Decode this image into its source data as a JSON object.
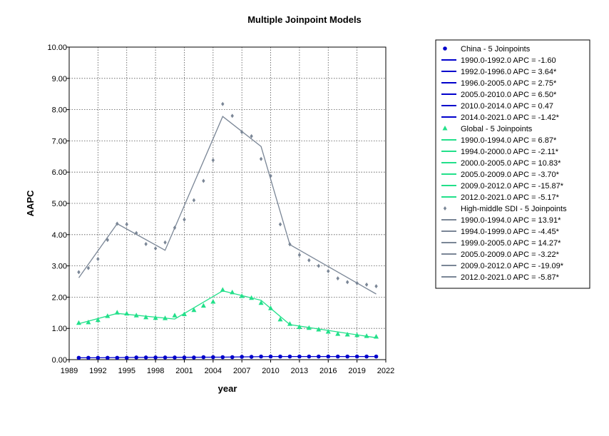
{
  "chart_data": {
    "type": "line",
    "title": "Multiple Joinpoint Models",
    "xlabel": "year",
    "ylabel": "AAPC",
    "xlim": [
      1989,
      2022
    ],
    "ylim": [
      0,
      10
    ],
    "xticks": [
      1989,
      1992,
      1995,
      1998,
      2001,
      2004,
      2007,
      2010,
      2013,
      2016,
      2019,
      2022
    ],
    "yticks": [
      0,
      1,
      2,
      3,
      4,
      5,
      6,
      7,
      8,
      9,
      10
    ],
    "ytick_labels": [
      "0.00",
      "1.00",
      "2.00",
      "3.00",
      "4.00",
      "5.00",
      "6.00",
      "7.00",
      "8.00",
      "9.00",
      "10.00"
    ],
    "grid": true,
    "legend_position": "right",
    "series": [
      {
        "name": "China - 5 Joinpoints",
        "color": "#0000cc",
        "marker": "circle",
        "x": [
          1990,
          1991,
          1992,
          1993,
          1994,
          1995,
          1996,
          1997,
          1998,
          1999,
          2000,
          2001,
          2002,
          2003,
          2004,
          2005,
          2006,
          2007,
          2008,
          2009,
          2010,
          2011,
          2012,
          2013,
          2014,
          2015,
          2016,
          2017,
          2018,
          2019,
          2020,
          2021
        ],
        "y": [
          0.06,
          0.06,
          0.06,
          0.06,
          0.06,
          0.06,
          0.07,
          0.07,
          0.07,
          0.07,
          0.07,
          0.07,
          0.07,
          0.08,
          0.08,
          0.08,
          0.08,
          0.09,
          0.09,
          0.1,
          0.1,
          0.1,
          0.1,
          0.1,
          0.1,
          0.1,
          0.1,
          0.1,
          0.1,
          0.1,
          0.1,
          0.1
        ],
        "fit": [
          [
            1990,
            0.06
          ],
          [
            1992,
            0.06
          ],
          [
            1996,
            0.07
          ],
          [
            2005,
            0.08
          ],
          [
            2010,
            0.1
          ],
          [
            2014,
            0.1
          ],
          [
            2021,
            0.1
          ]
        ],
        "segments": [
          "1990.0-1992.0 APC  =  -1.60",
          "1992.0-1996.0 APC  =  3.64*",
          "1996.0-2005.0 APC  =  2.75*",
          "2005.0-2010.0 APC  =  6.50*",
          "2010.0-2014.0 APC  =  0.47",
          "2014.0-2021.0 APC  =  -1.42*"
        ]
      },
      {
        "name": "Global - 5 Joinpoints",
        "color": "#22e08a",
        "marker": "triangle",
        "x": [
          1990,
          1991,
          1992,
          1993,
          1994,
          1995,
          1996,
          1997,
          1998,
          1999,
          2000,
          2001,
          2002,
          2003,
          2004,
          2005,
          2006,
          2007,
          2008,
          2009,
          2010,
          2011,
          2012,
          2013,
          2014,
          2015,
          2016,
          2017,
          2018,
          2019,
          2020,
          2021
        ],
        "y": [
          1.17,
          1.19,
          1.26,
          1.39,
          1.5,
          1.47,
          1.41,
          1.35,
          1.33,
          1.32,
          1.41,
          1.45,
          1.58,
          1.72,
          1.85,
          2.23,
          2.15,
          2.03,
          1.97,
          1.81,
          1.64,
          1.28,
          1.14,
          1.04,
          1.01,
          0.96,
          0.89,
          0.82,
          0.8,
          0.78,
          0.75,
          0.73
        ],
        "fit": [
          [
            1990,
            1.15
          ],
          [
            1994,
            1.48
          ],
          [
            2000,
            1.3
          ],
          [
            2005,
            2.2
          ],
          [
            2009,
            1.9
          ],
          [
            2012,
            1.12
          ],
          [
            2021,
            0.7
          ]
        ],
        "segments": [
          "1990.0-1994.0 APC  =   6.87*",
          "1994.0-2000.0 APC  =  -2.11*",
          "2000.0-2005.0 APC  =  10.83*",
          "2005.0-2009.0 APC  =  -3.70*",
          "2009.0-2012.0 APC  =  -15.87*",
          "2012.0-2021.0 APC  =  -5.17*"
        ]
      },
      {
        "name": "High-middle SDI - 5 Joinpoints",
        "color": "#7a8696",
        "marker": "diamond",
        "x": [
          1990,
          1991,
          1992,
          1993,
          1994,
          1995,
          1996,
          1997,
          1998,
          1999,
          2000,
          2001,
          2002,
          2003,
          2004,
          2005,
          2006,
          2007,
          2008,
          2009,
          2010,
          2011,
          2012,
          2013,
          2014,
          2015,
          2016,
          2017,
          2018,
          2019,
          2020,
          2021
        ],
        "y": [
          2.8,
          2.93,
          3.22,
          3.83,
          4.35,
          4.33,
          4.05,
          3.7,
          3.56,
          3.75,
          4.22,
          4.48,
          5.1,
          5.72,
          6.38,
          8.18,
          7.8,
          7.28,
          7.15,
          6.42,
          5.88,
          4.33,
          3.69,
          3.35,
          3.18,
          3.0,
          2.83,
          2.6,
          2.48,
          2.45,
          2.4,
          2.35
        ],
        "fit": [
          [
            1990,
            2.62
          ],
          [
            1994,
            4.35
          ],
          [
            1999,
            3.5
          ],
          [
            2005,
            7.78
          ],
          [
            2009,
            6.82
          ],
          [
            2012,
            3.68
          ],
          [
            2021,
            2.1
          ]
        ],
        "segments": [
          "1990.0-1994.0 APC  =  13.91*",
          "1994.0-1999.0 APC  =  -4.45*",
          "1999.0-2005.0 APC  =  14.27*",
          "2005.0-2009.0 APC  =  -3.22*",
          "2009.0-2012.0 APC  =  -19.09*",
          "2012.0-2021.0 APC  =  -5.87*"
        ]
      }
    ]
  }
}
